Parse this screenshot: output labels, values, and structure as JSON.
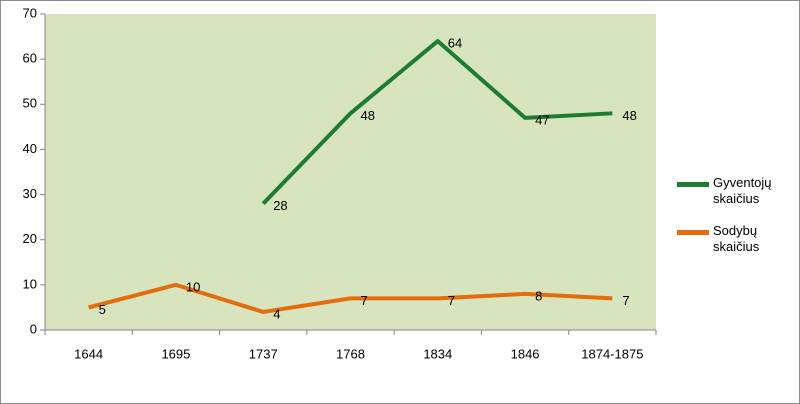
{
  "chart_data": {
    "type": "line",
    "categories": [
      "1644",
      "1695",
      "1737",
      "1768",
      "1834",
      "1846",
      "1874-1875"
    ],
    "series": [
      {
        "name": "Gyventojų skaičius",
        "color": "#1e7b34",
        "values": [
          null,
          null,
          28,
          48,
          64,
          47,
          48
        ]
      },
      {
        "name": "Sodybų skaičius",
        "color": "#e46c0a",
        "values": [
          5,
          10,
          4,
          7,
          7,
          8,
          7
        ]
      }
    ],
    "ylim": [
      0,
      70
    ],
    "yticks": [
      0,
      10,
      20,
      30,
      40,
      50,
      60,
      70
    ],
    "grid": false,
    "plot_background": "#d7e4bd",
    "legend": "right"
  }
}
